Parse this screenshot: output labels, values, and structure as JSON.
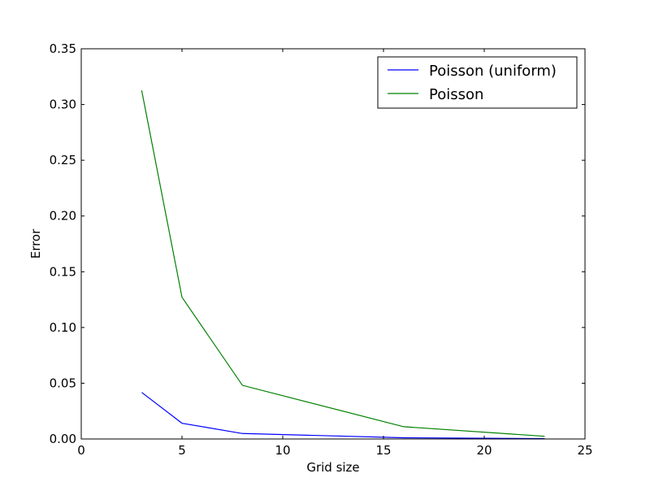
{
  "chart_data": {
    "type": "line",
    "title": "",
    "xlabel": "Grid size",
    "ylabel": "Error",
    "xlim": [
      0,
      25
    ],
    "ylim": [
      0,
      0.35
    ],
    "grid": false,
    "legend_position": "top-right",
    "x_ticks": [
      0,
      5,
      10,
      15,
      20,
      25
    ],
    "x_tick_labels": [
      "0",
      "5",
      "10",
      "15",
      "20",
      "25"
    ],
    "y_ticks": [
      0,
      0.05,
      0.1,
      0.15,
      0.2,
      0.25,
      0.3,
      0.35
    ],
    "y_tick_labels": [
      "0.00",
      "0.05",
      "0.10",
      "0.15",
      "0.20",
      "0.25",
      "0.30",
      "0.35"
    ],
    "series": [
      {
        "name": "Poisson (uniform)",
        "color": "#0000ff",
        "x": [
          3,
          5,
          8,
          16,
          23
        ],
        "y": [
          0.0418,
          0.0141,
          0.0049,
          0.0011,
          0.0003
        ]
      },
      {
        "name": "Poisson",
        "color": "#008000",
        "x": [
          3,
          5,
          8,
          16,
          23
        ],
        "y": [
          0.3126,
          0.1271,
          0.0481,
          0.011,
          0.0024
        ]
      }
    ]
  }
}
